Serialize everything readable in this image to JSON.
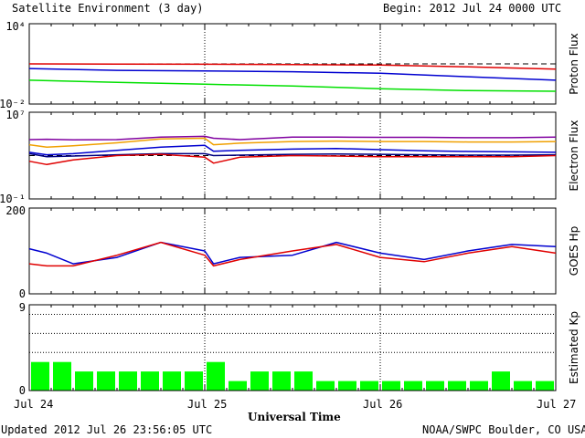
{
  "header": {
    "title": "Satellite Environment (3 day)",
    "begin": "Begin:  2012 Jul 24 0000 UTC"
  },
  "footer": {
    "updated": "Updated 2012 Jul 26 23:56:05 UTC",
    "credit": "NOAA/SWPC Boulder, CO USA",
    "xlabel": "Universal Time"
  },
  "x_ticks": [
    "Jul 24",
    "Jul 25",
    "Jul 26",
    "Jul 27"
  ],
  "colors": {
    "red": "#e00000",
    "blue": "#0000d0",
    "green": "#00e000",
    "purple": "#8000a0",
    "orange": "#f0a000",
    "navy": "#000080",
    "kp_bar": "#00ff00"
  },
  "chart_data": [
    {
      "type": "line",
      "ylabel": "Proton Flux",
      "scale": "log",
      "ylim": [
        0.01,
        10000
      ],
      "tick_labels": [
        "10⁴",
        "10⁻²"
      ],
      "threshold": 10,
      "x_days": [
        0,
        0.5,
        1,
        1.5,
        2,
        2.5,
        3
      ],
      "series": [
        {
          "color": "red",
          "values": [
            10,
            9.5,
            9.4,
            9,
            8.2,
            6,
            4
          ]
        },
        {
          "color": "blue",
          "values": [
            4.5,
            3.3,
            3,
            2.6,
            2,
            1.1,
            0.6
          ]
        },
        {
          "color": "green",
          "values": [
            0.6,
            0.42,
            0.3,
            0.22,
            0.14,
            0.1,
            0.09
          ]
        }
      ]
    },
    {
      "type": "line",
      "ylabel": "Electron Flux",
      "scale": "log",
      "ylim": [
        0.1,
        10000000
      ],
      "tick_labels": [
        "10⁷",
        "10⁻¹"
      ],
      "threshold": 1000,
      "x_days": [
        0,
        0.1,
        0.25,
        0.5,
        0.75,
        1,
        1.05,
        1.2,
        1.5,
        1.75,
        2,
        2.25,
        2.5,
        2.75,
        3
      ],
      "series": [
        {
          "color": "purple",
          "values": [
            30000,
            32000,
            28000,
            30000,
            50000,
            60000,
            40000,
            30000,
            50000,
            50000,
            48000,
            48000,
            45000,
            45000,
            50000
          ]
        },
        {
          "color": "orange",
          "values": [
            10000,
            6000,
            8000,
            15000,
            35000,
            40000,
            10000,
            14000,
            20000,
            22000,
            20000,
            20000,
            18000,
            18000,
            20000
          ]
        },
        {
          "color": "blue",
          "values": [
            2000,
            1200,
            1500,
            3000,
            6000,
            9000,
            2500,
            3000,
            4000,
            4500,
            3500,
            2800,
            2400,
            2200,
            2000
          ]
        },
        {
          "color": "navy",
          "values": [
            1500,
            800,
            900,
            1200,
            1500,
            1500,
            1000,
            1100,
            1300,
            1400,
            1300,
            1200,
            1100,
            1100,
            1200
          ]
        },
        {
          "color": "red",
          "values": [
            300,
            150,
            400,
            1000,
            1300,
            700,
            200,
            700,
            1000,
            900,
            800,
            800,
            800,
            800,
            1000
          ]
        }
      ]
    },
    {
      "type": "line",
      "ylabel": "GOES Hp",
      "scale": "linear",
      "ylim": [
        0,
        200
      ],
      "tick_labels": [
        "200",
        "0"
      ],
      "x_days": [
        0,
        0.1,
        0.25,
        0.5,
        0.75,
        1,
        1.05,
        1.2,
        1.5,
        1.75,
        2,
        2.25,
        2.5,
        2.75,
        3
      ],
      "series": [
        {
          "color": "blue",
          "values": [
            105,
            95,
            70,
            85,
            120,
            100,
            70,
            85,
            90,
            120,
            95,
            80,
            100,
            115,
            110
          ]
        },
        {
          "color": "red",
          "values": [
            70,
            65,
            65,
            90,
            120,
            90,
            65,
            80,
            100,
            115,
            85,
            75,
            95,
            110,
            95
          ]
        }
      ]
    },
    {
      "type": "bar",
      "ylabel": "Estimated Kp",
      "ylim": [
        0,
        9
      ],
      "tick_labels": [
        "9",
        "0"
      ],
      "gridlines": [
        4,
        6,
        8
      ],
      "values": [
        3,
        3,
        2,
        2,
        2,
        2,
        2,
        2,
        3,
        1,
        2,
        2,
        2,
        1,
        1,
        1,
        1,
        1,
        1,
        1,
        1,
        2,
        1,
        1
      ]
    }
  ]
}
